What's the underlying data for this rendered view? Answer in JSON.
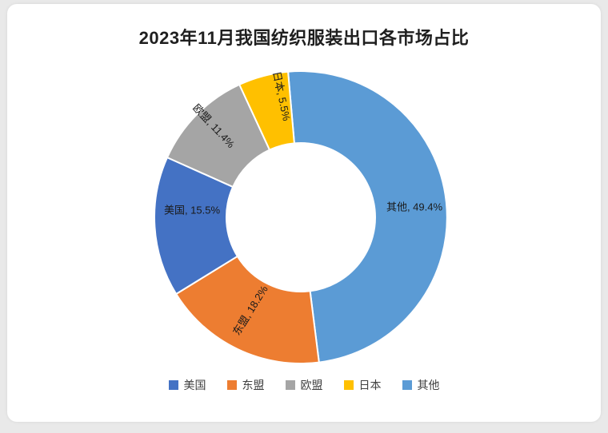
{
  "chart_data": {
    "type": "pie",
    "subtype": "donut",
    "title": "2023年11月我国纺织服装出口各市场占比",
    "categories": [
      "美国",
      "东盟",
      "欧盟",
      "日本",
      "其他"
    ],
    "values": [
      15.5,
      18.2,
      11.4,
      5.5,
      49.4
    ],
    "unit": "%",
    "colors": [
      "#4472C4",
      "#ED7D31",
      "#A5A5A5",
      "#FFC000",
      "#5B9BD5"
    ],
    "labels": [
      "美国, 15.5%",
      "东盟, 18.2%",
      "欧盟, 11.4%",
      "日本, 5.5%",
      "其他, 49.4%"
    ],
    "clockwise_order": [
      "其他",
      "东盟",
      "美国",
      "欧盟",
      "日本"
    ],
    "start_angle_deg": -5,
    "donut_hole_ratio": 0.51,
    "legend_position": "bottom",
    "legend_items": [
      "美国",
      "东盟",
      "欧盟",
      "日本",
      "其他"
    ]
  }
}
